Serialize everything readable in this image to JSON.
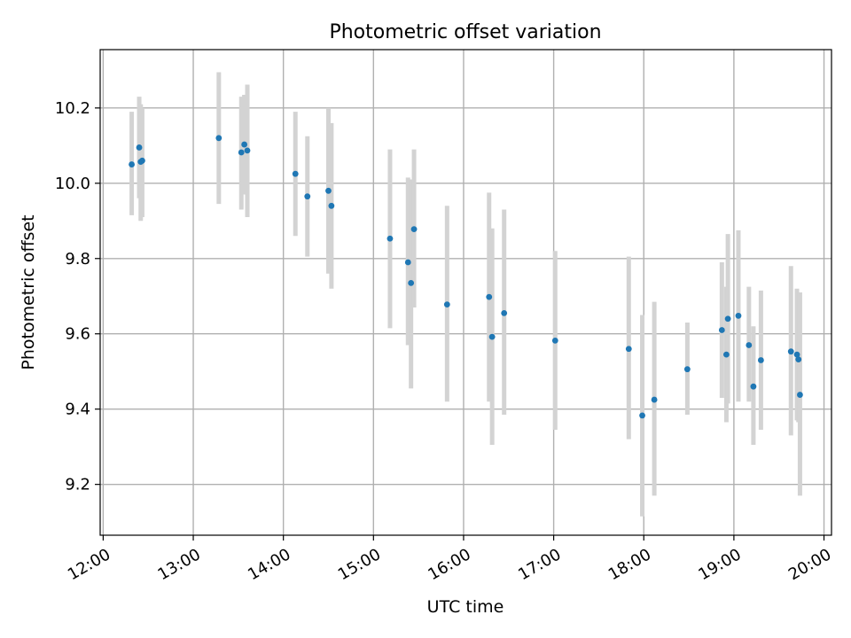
{
  "chart_data": {
    "type": "scatter",
    "title": "Photometric offset variation",
    "xlabel": "UTC time",
    "ylabel": "Photometric offset",
    "xlim": [
      "11:58",
      "20:05"
    ],
    "ylim": [
      9.065,
      10.355
    ],
    "grid": true,
    "x_ticks": [
      "12:00",
      "13:00",
      "14:00",
      "15:00",
      "16:00",
      "17:00",
      "18:00",
      "19:00",
      "20:00"
    ],
    "y_ticks": [
      "9.2",
      "9.4",
      "9.6",
      "9.8",
      "10.0",
      "10.2"
    ],
    "colors": {
      "points": "#1f77b4",
      "errorbars": "#d3d3d3",
      "grid": "#b0b0b0"
    },
    "points": [
      {
        "x": "12:19",
        "y": 10.05,
        "ylo": 9.915,
        "yhi": 10.19
      },
      {
        "x": "12:24",
        "y": 10.095,
        "ylo": 9.96,
        "yhi": 10.23
      },
      {
        "x": "12:25",
        "y": 10.057,
        "ylo": 9.9,
        "yhi": 10.21
      },
      {
        "x": "12:26",
        "y": 10.06,
        "ylo": 9.91,
        "yhi": 10.2
      },
      {
        "x": "13:17",
        "y": 10.12,
        "ylo": 9.945,
        "yhi": 10.295
      },
      {
        "x": "13:32",
        "y": 10.082,
        "ylo": 9.93,
        "yhi": 10.23
      },
      {
        "x": "13:34",
        "y": 10.103,
        "ylo": 9.97,
        "yhi": 10.235
      },
      {
        "x": "13:36",
        "y": 10.087,
        "ylo": 9.91,
        "yhi": 10.262
      },
      {
        "x": "14:08",
        "y": 10.025,
        "ylo": 9.86,
        "yhi": 10.19
      },
      {
        "x": "14:16",
        "y": 9.965,
        "ylo": 9.805,
        "yhi": 10.125
      },
      {
        "x": "14:30",
        "y": 9.98,
        "ylo": 9.76,
        "yhi": 10.2
      },
      {
        "x": "14:32",
        "y": 9.94,
        "ylo": 9.72,
        "yhi": 10.16
      },
      {
        "x": "15:11",
        "y": 9.853,
        "ylo": 9.615,
        "yhi": 10.09
      },
      {
        "x": "15:23",
        "y": 9.79,
        "ylo": 9.57,
        "yhi": 10.015
      },
      {
        "x": "15:25",
        "y": 9.735,
        "ylo": 9.455,
        "yhi": 10.01
      },
      {
        "x": "15:27",
        "y": 9.878,
        "ylo": 9.67,
        "yhi": 10.09
      },
      {
        "x": "15:49",
        "y": 9.678,
        "ylo": 9.42,
        "yhi": 9.94
      },
      {
        "x": "16:17",
        "y": 9.698,
        "ylo": 9.42,
        "yhi": 9.975
      },
      {
        "x": "16:19",
        "y": 9.592,
        "ylo": 9.305,
        "yhi": 9.88
      },
      {
        "x": "16:27",
        "y": 9.655,
        "ylo": 9.385,
        "yhi": 9.93
      },
      {
        "x": "17:01",
        "y": 9.582,
        "ylo": 9.345,
        "yhi": 9.82
      },
      {
        "x": "17:50",
        "y": 9.56,
        "ylo": 9.32,
        "yhi": 9.805
      },
      {
        "x": "17:59",
        "y": 9.383,
        "ylo": 9.115,
        "yhi": 9.65
      },
      {
        "x": "18:07",
        "y": 9.425,
        "ylo": 9.17,
        "yhi": 9.685
      },
      {
        "x": "18:29",
        "y": 9.506,
        "ylo": 9.385,
        "yhi": 9.63
      },
      {
        "x": "18:52",
        "y": 9.61,
        "ylo": 9.43,
        "yhi": 9.79
      },
      {
        "x": "18:55",
        "y": 9.545,
        "ylo": 9.365,
        "yhi": 9.725
      },
      {
        "x": "18:56",
        "y": 9.64,
        "ylo": 9.415,
        "yhi": 9.865
      },
      {
        "x": "19:03",
        "y": 9.648,
        "ylo": 9.42,
        "yhi": 9.875
      },
      {
        "x": "19:10",
        "y": 9.57,
        "ylo": 9.42,
        "yhi": 9.725
      },
      {
        "x": "19:13",
        "y": 9.46,
        "ylo": 9.305,
        "yhi": 9.62
      },
      {
        "x": "19:18",
        "y": 9.53,
        "ylo": 9.345,
        "yhi": 9.715
      },
      {
        "x": "19:38",
        "y": 9.553,
        "ylo": 9.33,
        "yhi": 9.78
      },
      {
        "x": "19:42",
        "y": 9.545,
        "ylo": 9.37,
        "yhi": 9.72
      },
      {
        "x": "19:43",
        "y": 9.532,
        "ylo": 9.365,
        "yhi": 9.7
      },
      {
        "x": "19:44",
        "y": 9.438,
        "ylo": 9.17,
        "yhi": 9.71
      }
    ]
  }
}
